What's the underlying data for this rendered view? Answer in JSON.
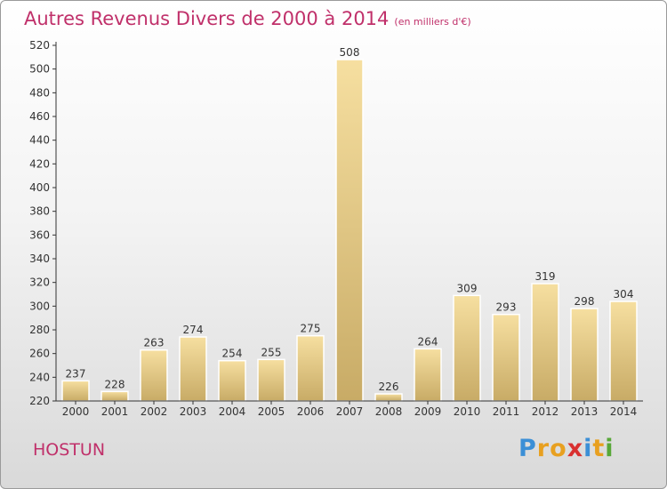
{
  "chart_data": {
    "type": "bar",
    "title": "Autres Revenus Divers de 2000 à 2014",
    "subtitle": "(en milliers d'€)",
    "categories": [
      "2000",
      "2001",
      "2002",
      "2003",
      "2004",
      "2005",
      "2006",
      "2007",
      "2008",
      "2009",
      "2010",
      "2011",
      "2012",
      "2013",
      "2014"
    ],
    "values": [
      237,
      228,
      263,
      274,
      254,
      255,
      275,
      508,
      226,
      264,
      309,
      293,
      319,
      298,
      304
    ],
    "ylim": [
      220,
      520
    ],
    "yticks": [
      220,
      240,
      260,
      280,
      300,
      320,
      340,
      360,
      380,
      400,
      420,
      440,
      460,
      480,
      500,
      520
    ],
    "grid": false,
    "colors": {
      "bar_light": "#f6dfa0",
      "bar_dark": "#c8ab66",
      "axis": "#333333",
      "title": "#c0306a"
    }
  },
  "place_name": "HOSTUN",
  "logo": {
    "letters": [
      "P",
      "r",
      "o",
      "x",
      "i",
      "t",
      "i"
    ],
    "colors": [
      "#3b8fd6",
      "#e8a020",
      "#e8a020",
      "#d93030",
      "#3b8fd6",
      "#e8a020",
      "#58a838"
    ]
  }
}
